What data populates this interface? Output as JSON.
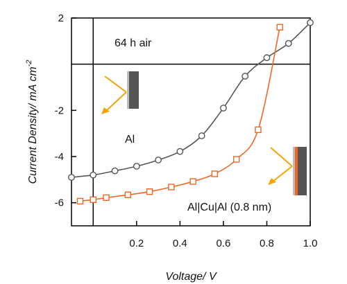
{
  "chart_data": {
    "type": "line",
    "title": "",
    "xlabel": "Voltage/ V",
    "ylabel": "Current Density/ mA cm",
    "ylabel_exponent": "-2",
    "xlim": [
      -0.1,
      1.0
    ],
    "ylim": [
      -7,
      2
    ],
    "x_ticks": [
      0.2,
      0.4,
      0.6,
      0.8,
      1.0
    ],
    "x_tick_labels": [
      "0.2",
      "0.4",
      "0.6",
      "0.8",
      "1.0"
    ],
    "y_ticks": [
      2,
      -2,
      -4,
      -6
    ],
    "y_tick_labels": [
      "2",
      "-2",
      "-4",
      "-6"
    ],
    "grid": false,
    "series": [
      {
        "marker": "circle",
        "color": "#555555",
        "x": [
          -0.1,
          0.0,
          0.1,
          0.2,
          0.3,
          0.4,
          0.5,
          0.6,
          0.7,
          0.8,
          0.9,
          1.0
        ],
        "y": [
          -4.9,
          -4.8,
          -4.62,
          -4.42,
          -4.15,
          -3.78,
          -3.1,
          -1.9,
          -0.52,
          0.28,
          0.9,
          1.8
        ]
      },
      {
        "marker": "square",
        "color": "#f26522",
        "x": [
          -0.06,
          0.0,
          0.06,
          0.16,
          0.26,
          0.36,
          0.46,
          0.56,
          0.66,
          0.76,
          0.86
        ],
        "y": [
          -5.93,
          -5.87,
          -5.78,
          -5.66,
          -5.52,
          -5.32,
          -5.08,
          -4.75,
          -4.12,
          -2.84,
          1.6
        ]
      }
    ],
    "annotations": {
      "condition": "64 h air",
      "device_1": "Al",
      "device_2": "Al|Cu|Al (0.8 nm)"
    },
    "colors": {
      "device_layer_dark": "#555555",
      "device_layer_light": "#bbbbbb",
      "device_layer_cu": "#f26522",
      "light_arrows": "#f5a300"
    }
  }
}
